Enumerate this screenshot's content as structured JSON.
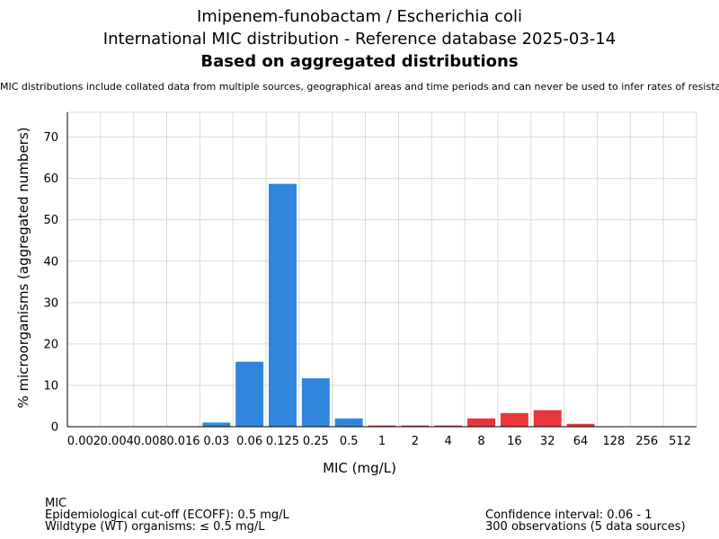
{
  "header": {
    "title_line1": "Imipenem-funobactam / Escherichia coli",
    "title_line2": "International MIC distribution - Reference database 2025-03-14",
    "title_line3": "Based on aggregated distributions",
    "subtitle": "MIC distributions include collated data from multiple sources, geographical areas and time periods and can never be used to infer rates of resistance"
  },
  "chart_data": {
    "type": "bar",
    "xlabel": "MIC (mg/L)",
    "ylabel": "% microorganisms (aggregated numbers)",
    "ylim": [
      0,
      76
    ],
    "yticks": [
      0,
      10,
      20,
      30,
      40,
      50,
      60,
      70
    ],
    "grid": true,
    "categories": [
      "0.002",
      "0.004",
      "0.008",
      "0.016",
      "0.03",
      "0.06",
      "0.125",
      "0.25",
      "0.5",
      "1",
      "2",
      "4",
      "8",
      "16",
      "32",
      "64",
      "128",
      "256",
      "512"
    ],
    "values": [
      0,
      0,
      0,
      0,
      1.0,
      15.7,
      58.7,
      11.7,
      2.0,
      0.3,
      0.3,
      0.3,
      2.0,
      3.3,
      4.0,
      0.7,
      0,
      0,
      0
    ],
    "bar_colors": [
      "#2f86dc",
      "#2f86dc",
      "#2f86dc",
      "#2f86dc",
      "#2f86dc",
      "#2f86dc",
      "#2f86dc",
      "#2f86dc",
      "#2f86dc",
      "#e8363a",
      "#e8363a",
      "#e8363a",
      "#e8363a",
      "#e8363a",
      "#e8363a",
      "#e8363a",
      "#e8363a",
      "#e8363a",
      "#e8363a"
    ],
    "wildtype_color": "#2f86dc",
    "non_wildtype_color": "#e8363a"
  },
  "footer": {
    "left": [
      "MIC",
      "Epidemiological cut-off (ECOFF): 0.5 mg/L",
      "Wildtype (WT) organisms: ≤ 0.5 mg/L"
    ],
    "right": [
      "Confidence interval: 0.06 - 1",
      "300 observations (5 data sources)"
    ]
  }
}
